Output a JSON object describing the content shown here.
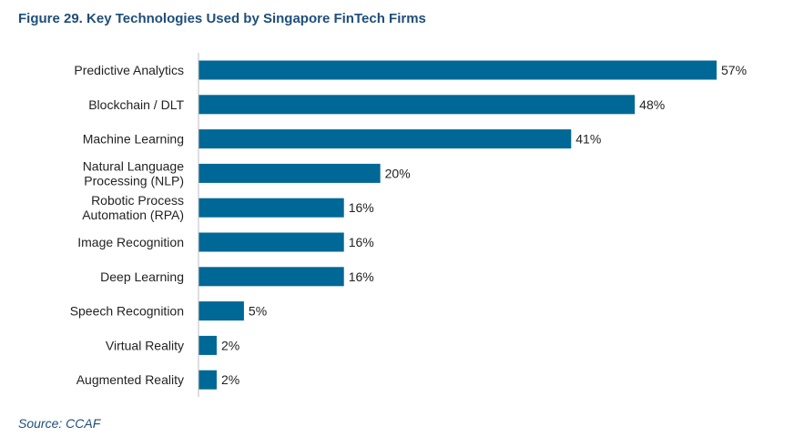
{
  "figure": {
    "title": "Figure 29. Key Technologies Used by Singapore FinTech Firms",
    "source": "Source: CCAF"
  },
  "colors": {
    "bar": "#006896",
    "title": "#1f4e79",
    "axis": "#bfbfbf",
    "text": "#222222"
  },
  "chart_data": {
    "type": "bar",
    "orientation": "horizontal",
    "categories": [
      "Predictive Analytics",
      "Blockchain / DLT",
      "Machine Learning",
      "Natural Language Processing (NLP)",
      "Robotic Process Automation (RPA)",
      "Image Recognition",
      "Deep Learning",
      "Speech Recognition",
      "Virtual Reality",
      "Augmented Reality"
    ],
    "category_lines": [
      [
        "Predictive Analytics"
      ],
      [
        "Blockchain / DLT"
      ],
      [
        "Machine Learning"
      ],
      [
        "Natural Language",
        "Processing (NLP)"
      ],
      [
        "Robotic Process",
        "Automation (RPA)"
      ],
      [
        "Image Recognition"
      ],
      [
        "Deep Learning"
      ],
      [
        "Speech Recognition"
      ],
      [
        "Virtual Reality"
      ],
      [
        "Augmented Reality"
      ]
    ],
    "values": [
      57,
      48,
      41,
      20,
      16,
      16,
      16,
      5,
      2,
      2
    ],
    "value_labels": [
      "57%",
      "48%",
      "41%",
      "20%",
      "16%",
      "16%",
      "16%",
      "5%",
      "2%",
      "2%"
    ],
    "title": "Figure 29. Key Technologies Used by Singapore FinTech Firms",
    "xlabel": "",
    "ylabel": "",
    "xlim": [
      0,
      57
    ],
    "grid": false,
    "legend": "none"
  }
}
